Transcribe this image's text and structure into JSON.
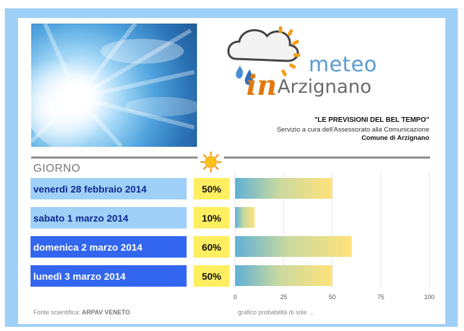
{
  "logo": {
    "meteo": "meteo",
    "in": "in",
    "city": "Arzignano"
  },
  "header": {
    "tagline": "\"LE PREVISIONI DEL BEL TEMPO\"",
    "service": "Servizio a cura dell'Assessorato alla Comunicazione",
    "municipality": "Comune di Arzignano"
  },
  "table": {
    "column_label": "GIORNO"
  },
  "days": [
    {
      "label": "venerdì 28 febbraio 2014",
      "percent": "50%"
    },
    {
      "label": "sabato 1 marzo 2014",
      "percent": "10%"
    },
    {
      "label": "domenica 2 marzo 2014",
      "percent": "60%"
    },
    {
      "label": "lunedì 3 marzo 2014",
      "percent": "50%"
    }
  ],
  "footer": {
    "source_label": "Fonte scientifica:",
    "source_value": "ARPAV VENETO",
    "chart_caption": "grafico probabilità di sole ..."
  },
  "colors": {
    "frame": "#9fd0f7",
    "row_light": "#9fd0f7",
    "row_dark": "#3366ee",
    "percent_bg": "#ffef60"
  },
  "chart_data": {
    "type": "bar",
    "orientation": "horizontal",
    "categories": [
      "venerdì 28 febbraio 2014",
      "sabato 1 marzo 2014",
      "domenica 2 marzo 2014",
      "lunedì 3 marzo 2014"
    ],
    "values": [
      50,
      10,
      60,
      50
    ],
    "xlim": [
      0,
      100
    ],
    "ticks": [
      "0",
      "25",
      "50",
      "75",
      "100"
    ],
    "grid": true
  }
}
